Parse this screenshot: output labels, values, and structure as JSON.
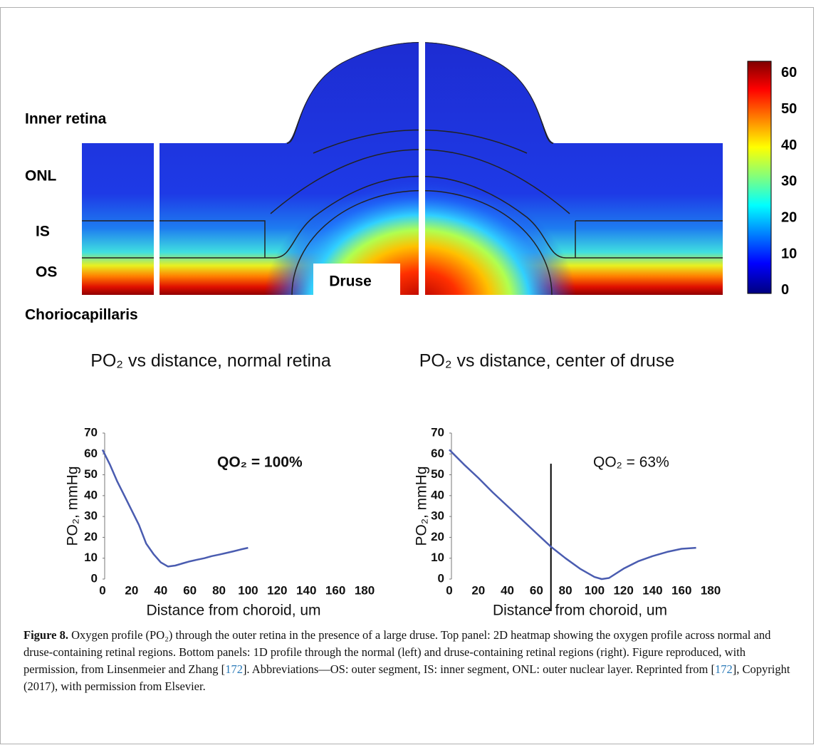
{
  "heatmap": {
    "layer_labels": [
      "Inner retina",
      "ONL",
      "IS",
      "OS",
      "Choriocapillaris"
    ],
    "druse_label": "Druse",
    "colorbar": {
      "lim": [
        -0.8,
        63.3
      ],
      "ticks": [
        0,
        10,
        20,
        30,
        40,
        50,
        60
      ]
    }
  },
  "chart_data": [
    {
      "type": "line",
      "title": "PO₂ vs distance, normal retina",
      "x_label": "Distance from choroid, um",
      "y_label": "PO₂, mmHg",
      "annotation": "QO₂ = 100%",
      "annotation_bold": true,
      "xlim": [
        0,
        180
      ],
      "xticks": [
        0,
        20,
        40,
        60,
        80,
        100,
        120,
        140,
        160,
        180
      ],
      "ylim": [
        0,
        70
      ],
      "yticks": [
        0,
        10,
        20,
        30,
        40,
        50,
        60,
        70
      ],
      "series": [
        {
          "color": "#4a5cb0",
          "x": [
            0,
            5,
            10,
            15,
            20,
            25,
            30,
            35,
            40,
            45,
            50,
            55,
            60,
            65,
            70,
            75,
            80,
            85,
            90,
            95,
            100
          ],
          "values": [
            62,
            55,
            47,
            40,
            33,
            26,
            17,
            12,
            8,
            6,
            6.5,
            7.5,
            8.5,
            9.3,
            10,
            11,
            11.7,
            12.5,
            13.3,
            14.2,
            15
          ]
        }
      ]
    },
    {
      "type": "line",
      "title": "PO₂ vs distance, center of druse",
      "x_label": "Distance from choroid,  um",
      "y_label": "PO₂, mmHg",
      "annotation": "QO₂ = 63%",
      "annotation_bold": false,
      "vline": 70,
      "xlim": [
        0,
        180
      ],
      "xticks": [
        0,
        20,
        40,
        60,
        80,
        100,
        120,
        140,
        160,
        180
      ],
      "ylim": [
        0,
        70
      ],
      "yticks": [
        0,
        10,
        20,
        30,
        40,
        50,
        60,
        70
      ],
      "series": [
        {
          "color": "#4a5cb0",
          "x": [
            0,
            10,
            20,
            30,
            40,
            50,
            60,
            70,
            80,
            90,
            100,
            105,
            110,
            120,
            130,
            140,
            150,
            160,
            170
          ],
          "values": [
            62,
            55,
            48.5,
            41.5,
            35,
            28.5,
            22,
            15.5,
            10,
            5,
            1,
            0,
            0.5,
            5,
            8.5,
            11,
            13,
            14.5,
            15
          ]
        }
      ]
    }
  ],
  "caption": {
    "label": "Figure 8.",
    "parts": [
      "Oxygen profile (PO₂) through the outer retina in the presence of a large druse. Top panel: 2D heatmap showing the oxygen profile across normal and druse-containing retinal regions. Bottom panels: 1D profile through the normal (left) and druse-containing retinal regions (right). Figure reproduced, with permission, from Linsenmeier and Zhang [",
      "172",
      "]. Abbreviations—OS: outer segment, IS: inner segment, ONL: outer nuclear layer. Reprinted from [",
      "172",
      "], Copyright (2017), with permission from Elsevier."
    ]
  }
}
